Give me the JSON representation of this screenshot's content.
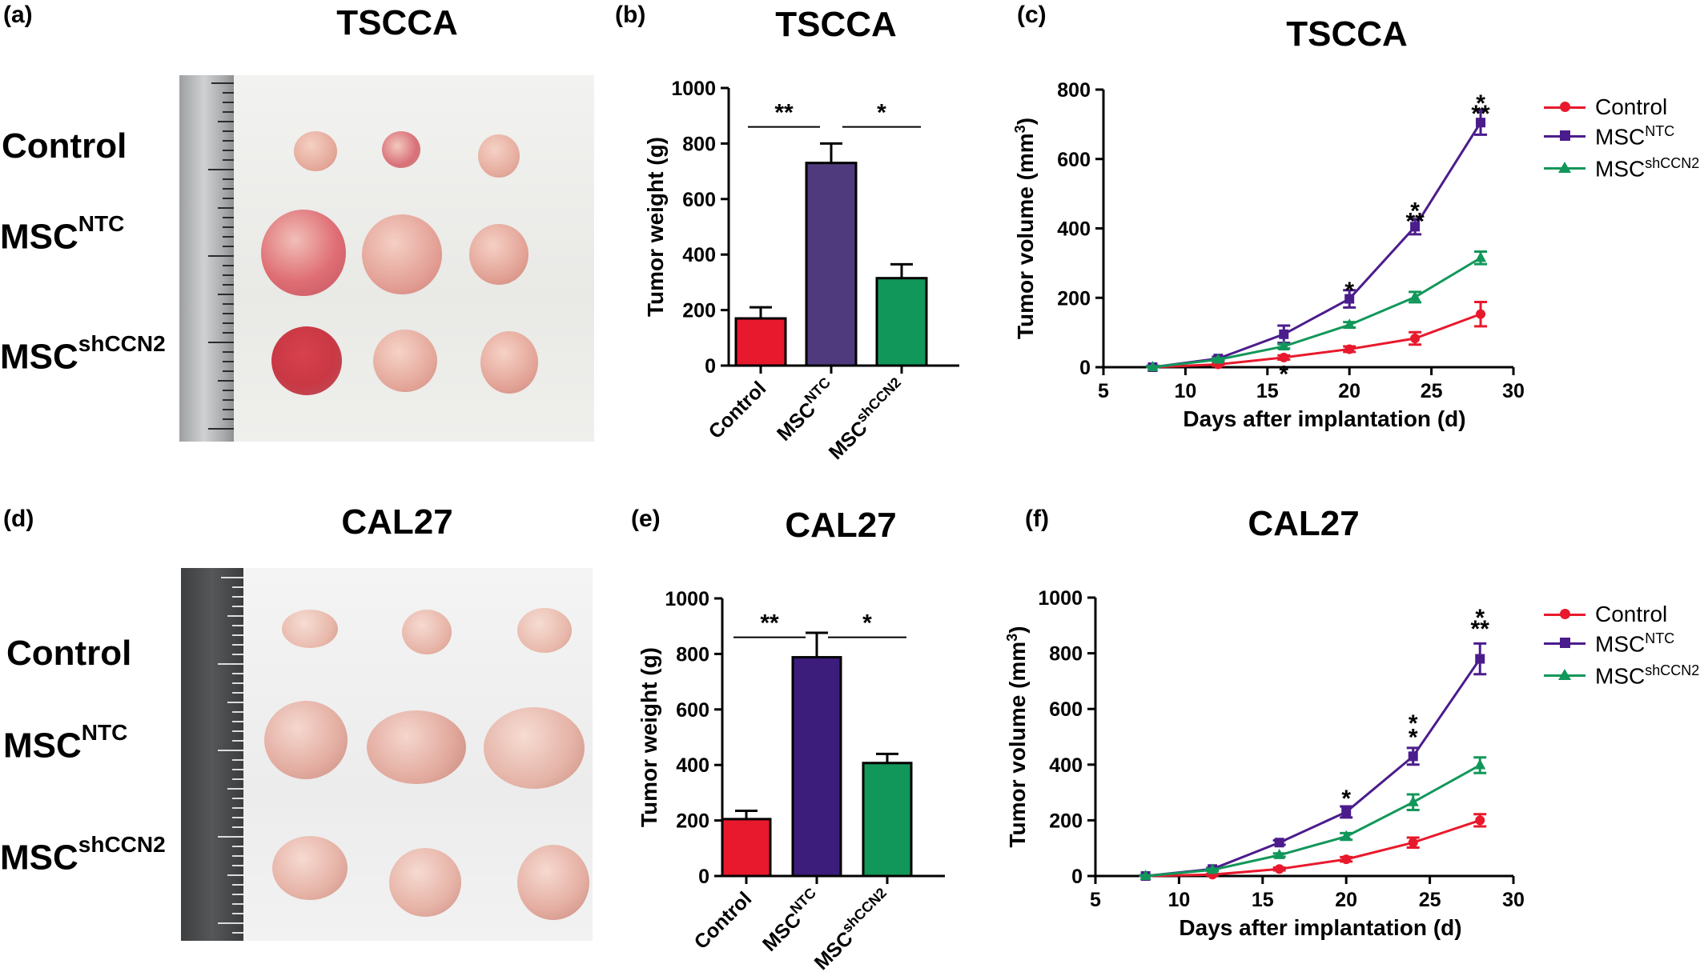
{
  "panels": {
    "a": {
      "letter": "(a)",
      "title": "TSCCA"
    },
    "b": {
      "letter": "(b)",
      "title": "TSCCA"
    },
    "c": {
      "letter": "(c)",
      "title": "TSCCA"
    },
    "d": {
      "letter": "(d)",
      "title": "CAL27"
    },
    "e": {
      "letter": "(e)",
      "title": "CAL27"
    },
    "f": {
      "letter": "(f)",
      "title": "CAL27"
    }
  },
  "photo_labels": {
    "control": "Control",
    "ntc_base": "MSC",
    "ntc_sup": "NTC",
    "sh_base": "MSC",
    "sh_sup": "shCCN2"
  },
  "legend": {
    "control": "Control",
    "ntc_base": "MSC",
    "ntc_sup": "NTC",
    "sh_base": "MSC",
    "sh_sup": "shCCN2"
  },
  "colors": {
    "control": "#e8192c",
    "ntc_bar_b": "#4e3a7c",
    "ntc_bar_e": "#3c1d7c",
    "ntc_line": "#4b1c8c",
    "sh": "#12975a"
  },
  "chart_data": [
    {
      "id": "b",
      "type": "bar",
      "title": "TSCCA",
      "ylabel": "Tumor weight (g)",
      "ylim": [
        0,
        1000
      ],
      "yticks": [
        0,
        200,
        400,
        600,
        800,
        1000
      ],
      "categories": [
        "Control",
        "MSC^NTC",
        "MSC^shCCN2"
      ],
      "values": [
        170,
        730,
        315
      ],
      "errors": [
        40,
        70,
        50
      ],
      "significance": [
        {
          "from": 0,
          "to": 1,
          "label": "**"
        },
        {
          "from": 1,
          "to": 2,
          "label": "*"
        }
      ]
    },
    {
      "id": "c",
      "type": "line",
      "title": "TSCCA",
      "xlabel": "Days after implantation (d)",
      "ylabel": "Tumor volume (mm3)",
      "xlim": [
        5,
        30
      ],
      "ylim": [
        0,
        800
      ],
      "xticks": [
        5,
        10,
        15,
        20,
        25,
        30
      ],
      "yticks": [
        0,
        200,
        400,
        600,
        800
      ],
      "x": [
        8,
        12,
        16,
        20,
        24,
        28
      ],
      "series": [
        {
          "name": "Control",
          "values": [
            0,
            8,
            28,
            52,
            83,
            153
          ],
          "errors": [
            3,
            4,
            6,
            8,
            18,
            35
          ]
        },
        {
          "name": "MSC^NTC",
          "values": [
            0,
            25,
            95,
            197,
            405,
            705
          ],
          "errors": [
            4,
            5,
            25,
            25,
            22,
            35
          ]
        },
        {
          "name": "MSC^shCCN2",
          "values": [
            0,
            22,
            60,
            122,
            202,
            315
          ],
          "errors": [
            3,
            4,
            6,
            8,
            15,
            18
          ]
        }
      ],
      "annotations": [
        {
          "x": 16,
          "y": -10,
          "label": "*"
        },
        {
          "x": 20,
          "y": 230,
          "label": "*"
        },
        {
          "x": 24,
          "y": 460,
          "label": "*"
        },
        {
          "x": 24,
          "y": 430,
          "label": "**"
        },
        {
          "x": 28,
          "y": 770,
          "label": "*"
        },
        {
          "x": 28,
          "y": 740,
          "label": "**"
        }
      ]
    },
    {
      "id": "e",
      "type": "bar",
      "title": "CAL27",
      "ylabel": "Tumor weight (g)",
      "ylim": [
        0,
        1000
      ],
      "yticks": [
        0,
        200,
        400,
        600,
        800,
        1000
      ],
      "categories": [
        "Control",
        "MSC^NTC",
        "MSC^shCCN2"
      ],
      "values": [
        205,
        788,
        407
      ],
      "errors": [
        30,
        88,
        33
      ],
      "significance": [
        {
          "from": 0,
          "to": 1,
          "label": "**"
        },
        {
          "from": 1,
          "to": 2,
          "label": "*"
        }
      ]
    },
    {
      "id": "f",
      "type": "line",
      "title": "CAL27",
      "xlabel": "Days after implantation (d)",
      "ylabel": "Tumor volume (mm3)",
      "xlim": [
        5,
        30
      ],
      "ylim": [
        0,
        1000
      ],
      "xticks": [
        5,
        10,
        15,
        20,
        25,
        30
      ],
      "yticks": [
        0,
        200,
        400,
        600,
        800,
        1000
      ],
      "x": [
        8,
        12,
        16,
        20,
        24,
        28
      ],
      "series": [
        {
          "name": "Control",
          "values": [
            0,
            5,
            25,
            60,
            120,
            200
          ],
          "errors": [
            3,
            3,
            5,
            8,
            18,
            22
          ]
        },
        {
          "name": "MSC^NTC",
          "values": [
            0,
            25,
            120,
            230,
            430,
            780
          ],
          "errors": [
            3,
            4,
            8,
            20,
            30,
            55
          ]
        },
        {
          "name": "MSC^shCCN2",
          "values": [
            0,
            22,
            75,
            142,
            265,
            398
          ],
          "errors": [
            3,
            4,
            6,
            12,
            28,
            28
          ]
        }
      ],
      "annotations": [
        {
          "x": 20,
          "y": 290,
          "label": "*"
        },
        {
          "x": 24,
          "y": 560,
          "label": "*"
        },
        {
          "x": 24,
          "y": 510,
          "label": "*"
        },
        {
          "x": 28,
          "y": 940,
          "label": "*"
        },
        {
          "x": 28,
          "y": 900,
          "label": "**"
        }
      ]
    }
  ]
}
